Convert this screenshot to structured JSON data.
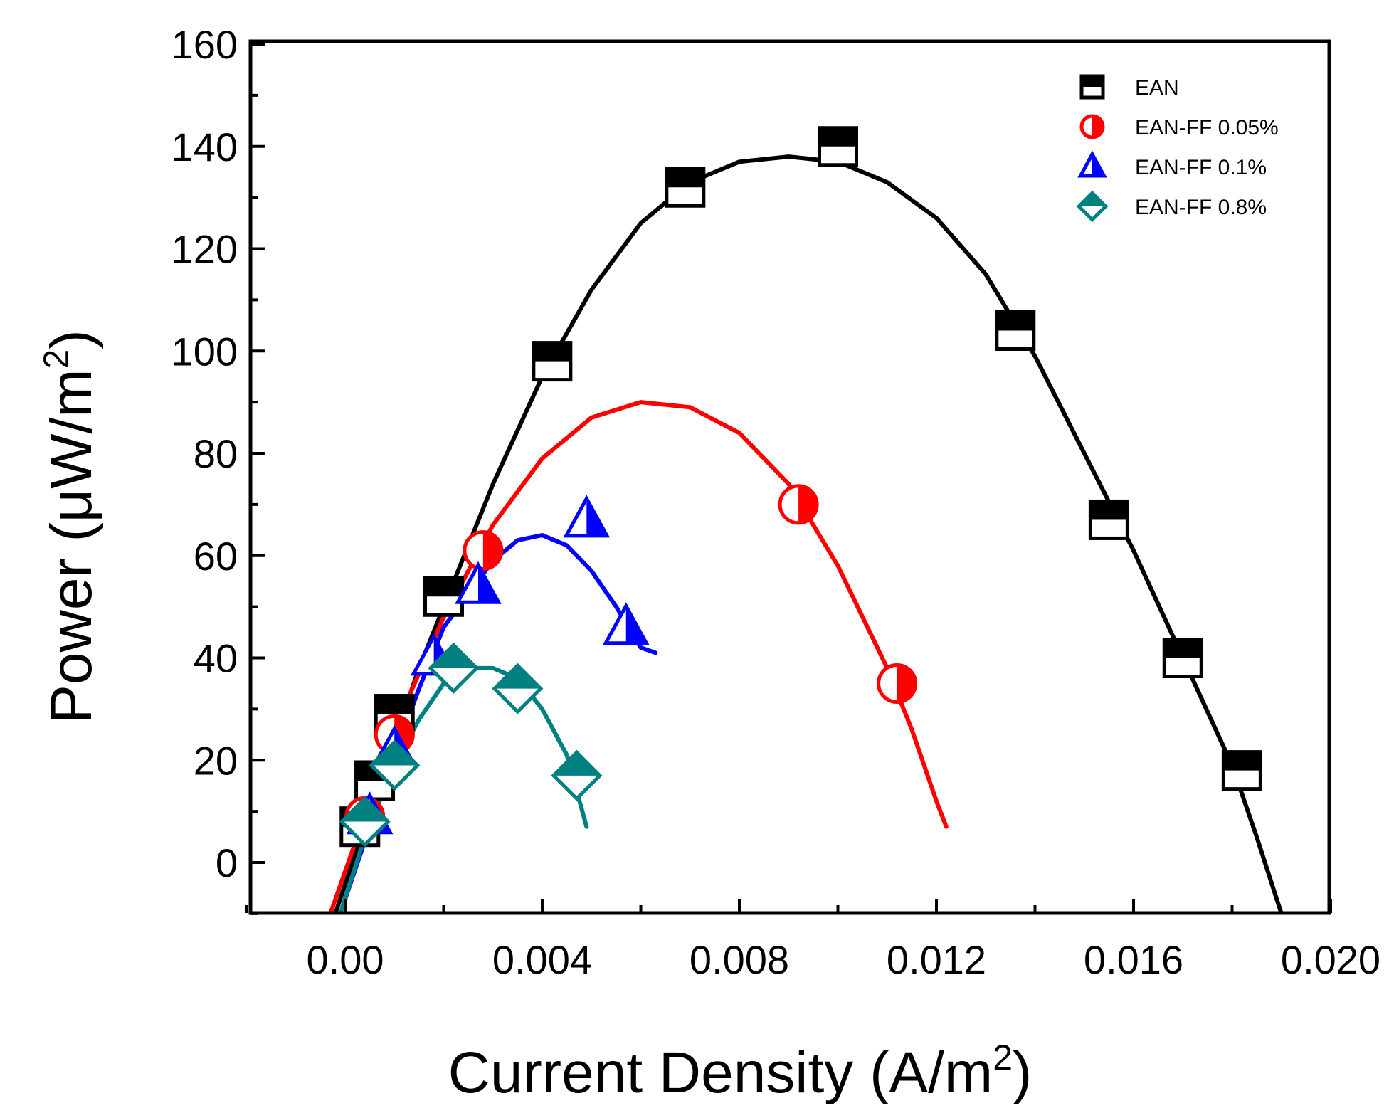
{
  "chart_data": {
    "type": "scatter",
    "xlabel": "Current Density (A/m",
    "xlabel_sup": "2",
    "xlabel_close": ")",
    "ylabel": "Power (μW/m",
    "ylabel_sup": "2",
    "ylabel_close": ")",
    "xlim": [
      -0.002,
      0.0205
    ],
    "ylim": [
      -10,
      160
    ],
    "xticks": [
      0.0,
      0.004,
      0.008,
      0.012,
      0.016,
      0.02
    ],
    "xtick_labels": [
      "0.00",
      "0.004",
      "0.008",
      "0.012",
      "0.016",
      "0.020"
    ],
    "yticks": [
      0,
      20,
      40,
      60,
      80,
      100,
      120,
      140,
      160
    ],
    "ytick_labels": [
      "0",
      "20",
      "40",
      "60",
      "80",
      "100",
      "120",
      "140",
      "160"
    ],
    "legend_position": "top-right",
    "series": [
      {
        "name": "EAN",
        "color": "#000000",
        "marker": "square-half",
        "points": [
          [
            0.0003,
            7
          ],
          [
            0.0006,
            16
          ],
          [
            0.001,
            29
          ],
          [
            0.002,
            52
          ],
          [
            0.0042,
            98
          ],
          [
            0.0069,
            132
          ],
          [
            0.01,
            140
          ],
          [
            0.0136,
            104
          ],
          [
            0.0155,
            67
          ],
          [
            0.017,
            40
          ],
          [
            0.0182,
            18
          ]
        ],
        "fit": [
          [
            -0.0002,
            -10
          ],
          [
            0.0005,
            10
          ],
          [
            0.001,
            24
          ],
          [
            0.0015,
            38
          ],
          [
            0.002,
            50
          ],
          [
            0.003,
            74
          ],
          [
            0.004,
            95
          ],
          [
            0.005,
            112
          ],
          [
            0.006,
            125
          ],
          [
            0.007,
            133
          ],
          [
            0.008,
            137
          ],
          [
            0.009,
            138
          ],
          [
            0.01,
            137
          ],
          [
            0.011,
            133
          ],
          [
            0.012,
            126
          ],
          [
            0.013,
            115
          ],
          [
            0.014,
            99
          ],
          [
            0.015,
            80
          ],
          [
            0.016,
            61
          ],
          [
            0.017,
            40
          ],
          [
            0.018,
            19
          ],
          [
            0.0185,
            5
          ],
          [
            0.019,
            -10
          ]
        ]
      },
      {
        "name": "EAN-FF 0.05%",
        "color": "#ff0000",
        "marker": "circle-half",
        "points": [
          [
            0.0004,
            9
          ],
          [
            0.001,
            25
          ],
          [
            0.0028,
            61
          ],
          [
            0.0092,
            70
          ],
          [
            0.0112,
            35
          ]
        ],
        "fit": [
          [
            -0.0003,
            -10
          ],
          [
            0.0005,
            12
          ],
          [
            0.001,
            26
          ],
          [
            0.002,
            48
          ],
          [
            0.003,
            66
          ],
          [
            0.004,
            79
          ],
          [
            0.005,
            87
          ],
          [
            0.006,
            90
          ],
          [
            0.007,
            89
          ],
          [
            0.008,
            84
          ],
          [
            0.009,
            74
          ],
          [
            0.01,
            58
          ],
          [
            0.011,
            38
          ],
          [
            0.0115,
            26
          ],
          [
            0.012,
            12
          ],
          [
            0.0122,
            7
          ]
        ]
      },
      {
        "name": "EAN-FF 0.1%",
        "color": "#0000ff",
        "marker": "triangle",
        "points": [
          [
            0.0005,
            9
          ],
          [
            0.001,
            22
          ],
          [
            0.0018,
            40
          ],
          [
            0.0027,
            54
          ],
          [
            0.0049,
            67
          ],
          [
            0.0057,
            46
          ]
        ],
        "fit": [
          [
            -0.0001,
            -10
          ],
          [
            0.0005,
            7
          ],
          [
            0.001,
            21
          ],
          [
            0.0015,
            34
          ],
          [
            0.002,
            46
          ],
          [
            0.003,
            59
          ],
          [
            0.0035,
            63
          ],
          [
            0.004,
            64
          ],
          [
            0.0045,
            62
          ],
          [
            0.005,
            57
          ],
          [
            0.0055,
            50
          ],
          [
            0.006,
            42
          ],
          [
            0.0063,
            41
          ]
        ]
      },
      {
        "name": "EAN-FF 0.8%",
        "color": "#008080",
        "marker": "diamond-half",
        "points": [
          [
            0.0004,
            8
          ],
          [
            0.001,
            19
          ],
          [
            0.0022,
            38
          ],
          [
            0.0035,
            34
          ],
          [
            0.0047,
            17
          ]
        ],
        "fit": [
          [
            -0.0001,
            -10
          ],
          [
            0.0004,
            5
          ],
          [
            0.001,
            19
          ],
          [
            0.0015,
            28
          ],
          [
            0.002,
            35
          ],
          [
            0.0025,
            38
          ],
          [
            0.003,
            38
          ],
          [
            0.0035,
            36
          ],
          [
            0.004,
            30
          ],
          [
            0.0045,
            21
          ],
          [
            0.0049,
            7
          ]
        ]
      }
    ]
  }
}
